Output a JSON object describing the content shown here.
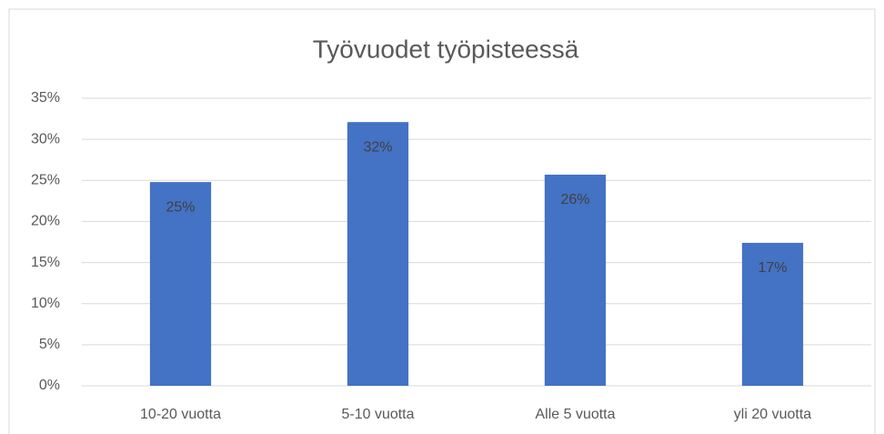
{
  "chart_data": {
    "type": "bar",
    "title": "Työvuodet työpisteessä",
    "categories": [
      "10-20 vuotta",
      "5-10 vuotta",
      "Alle 5 vuotta",
      "yli 20 vuotta"
    ],
    "values": [
      24.8,
      32.1,
      25.7,
      17.4
    ],
    "value_labels": [
      "25%",
      "32%",
      "26%",
      "17%"
    ],
    "color": "#4472c4",
    "ylim": [
      0,
      35
    ],
    "yticks": [
      {
        "value": 0,
        "label": "0%"
      },
      {
        "value": 5,
        "label": "5%"
      },
      {
        "value": 10,
        "label": "10%"
      },
      {
        "value": 15,
        "label": "15%"
      },
      {
        "value": 20,
        "label": "20%"
      },
      {
        "value": 25,
        "label": "25%"
      },
      {
        "value": 30,
        "label": "30%"
      },
      {
        "value": 35,
        "label": "35%"
      }
    ],
    "grid": true
  }
}
